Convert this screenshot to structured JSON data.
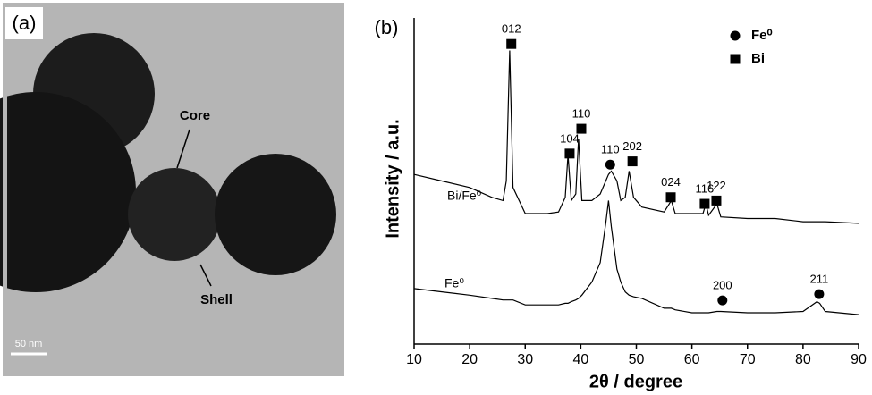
{
  "panel_a": {
    "label": "(a)",
    "annotations": [
      "Core",
      "Shell"
    ],
    "scale_bar": "50 nm"
  },
  "chart_data": {
    "type": "line",
    "panel_label": "(b)",
    "x_label": "2θ / degree",
    "y_label": "Intensity / a.u.",
    "x": [
      10,
      15,
      20,
      24,
      26,
      26.6,
      27.2,
      27.8,
      30,
      34,
      36,
      37.2,
      37.7,
      38.3,
      39.1,
      39.6,
      40.2,
      42,
      43.5,
      44.5,
      45,
      45.5,
      46.5,
      47.2,
      48,
      48.7,
      49.5,
      51,
      55,
      56.3,
      57,
      60,
      62,
      62.5,
      63,
      64.5,
      65.2,
      70,
      75,
      80,
      82.5,
      83,
      84,
      90
    ],
    "series": [
      {
        "name": "Bi/Fe⁰",
        "color": "#000000",
        "values": [
          52,
          50,
          48,
          45,
          44,
          50,
          90,
          48,
          40,
          40,
          40.5,
          45,
          58,
          44,
          46,
          63,
          44,
          44,
          46,
          50,
          52,
          53,
          50,
          44,
          45,
          53,
          45,
          42,
          40.5,
          44,
          40,
          40,
          40,
          43,
          39.5,
          43,
          39,
          38.5,
          38.5,
          37.5,
          37.5,
          37.5,
          37.5,
          37
        ]
      },
      {
        "name": "Fe⁰",
        "color": "#000000",
        "values": [
          17,
          16,
          15,
          14,
          13.5,
          13.5,
          13.5,
          13.5,
          12,
          12,
          12,
          12.5,
          12.5,
          13,
          13.5,
          14,
          15,
          19,
          25,
          37,
          44,
          36,
          23,
          19,
          16,
          15,
          14.5,
          14,
          11,
          11,
          10.5,
          9.6,
          9.6,
          9.6,
          9.6,
          10,
          10,
          9.6,
          9.6,
          10,
          13,
          12.5,
          10,
          9
        ]
      }
    ],
    "xlim": [
      10,
      90
    ],
    "xticks": [
      10,
      20,
      30,
      40,
      50,
      60,
      70,
      80,
      90
    ],
    "ylim": [
      0,
      100
    ],
    "legend": [
      {
        "label": "Fe⁰",
        "marker": "circle"
      },
      {
        "label": "Bi",
        "marker": "square"
      }
    ],
    "annotations": [
      {
        "text": "012",
        "x": 27.5,
        "y": 92,
        "marker": "square"
      },
      {
        "text": "104",
        "x": 38,
        "y": 58.4,
        "marker": "square"
      },
      {
        "text": "110",
        "x": 40.1,
        "y": 66,
        "marker": "square"
      },
      {
        "text": "110",
        "x": 45.3,
        "y": 55,
        "marker": "circle"
      },
      {
        "text": "202",
        "x": 49.3,
        "y": 56,
        "marker": "square"
      },
      {
        "text": "024",
        "x": 56.2,
        "y": 45,
        "marker": "square"
      },
      {
        "text": "116",
        "x": 62.3,
        "y": 43,
        "marker": "square"
      },
      {
        "text": "122",
        "x": 64.4,
        "y": 44,
        "marker": "square"
      },
      {
        "text": "200",
        "x": 65.5,
        "y": 13.4,
        "marker": "circle"
      },
      {
        "text": "211",
        "x": 82.9,
        "y": 15.3,
        "marker": "circle"
      }
    ]
  }
}
